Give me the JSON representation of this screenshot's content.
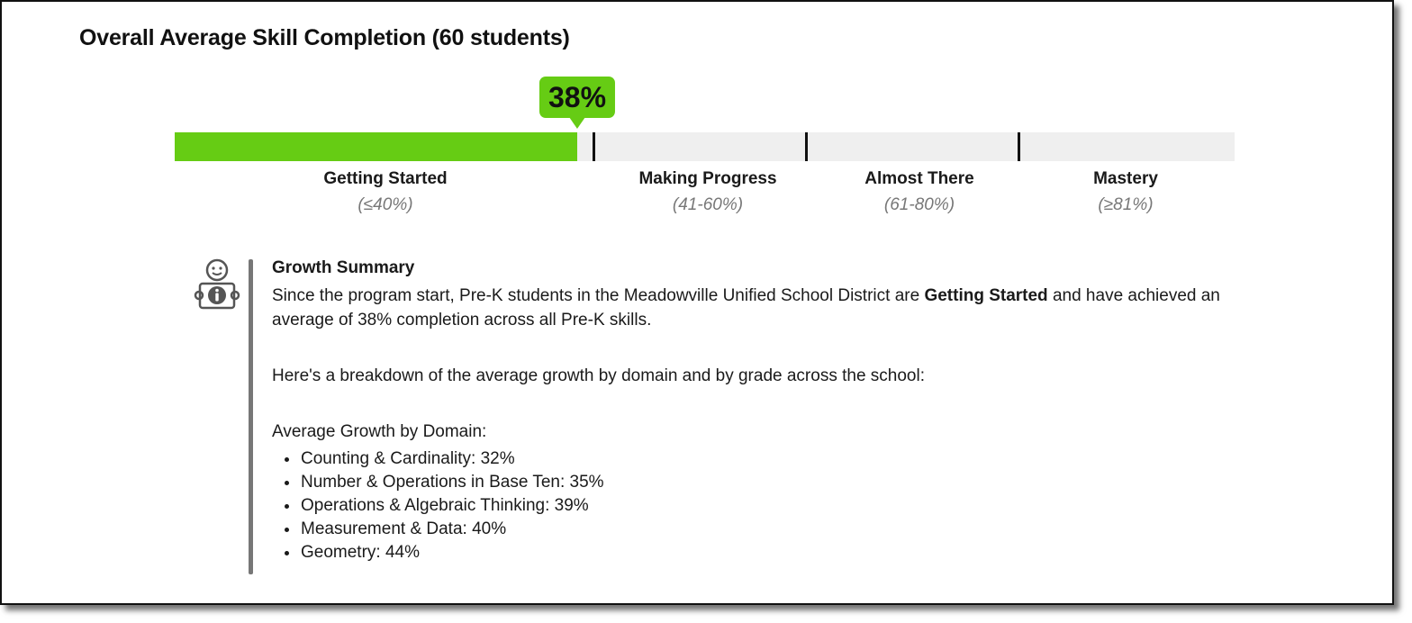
{
  "title": "Overall Average Skill Completion (60 students)",
  "progress": {
    "percent_label": "38%",
    "value": 0.38,
    "fill_color": "#66cc14",
    "track_color": "#efefef"
  },
  "segments": [
    {
      "name": "Getting Started",
      "range": "(≤40%)"
    },
    {
      "name": "Making Progress",
      "range": "(41-60%)"
    },
    {
      "name": "Almost There",
      "range": "(61-80%)"
    },
    {
      "name": "Mastery",
      "range": "(≥81%)"
    }
  ],
  "summary": {
    "icon": "child-info-icon",
    "heading": "Growth Summary",
    "para1_before": "Since the program start, Pre-K students in the Meadowville Unified School District are ",
    "para1_bold": "Getting Started",
    "para1_after": " and have achieved an average of 38% completion across all Pre-K skills.",
    "para2": "Here's a breakdown of the average growth by domain and by grade across the school:",
    "domain_title": "Average Growth by Domain:",
    "domains": [
      "Counting & Cardinality: 32%",
      "Number & Operations in Base Ten: 35%",
      "Operations & Algebraic Thinking: 39%",
      "Measurement & Data: 40%",
      "Geometry: 44%"
    ]
  }
}
